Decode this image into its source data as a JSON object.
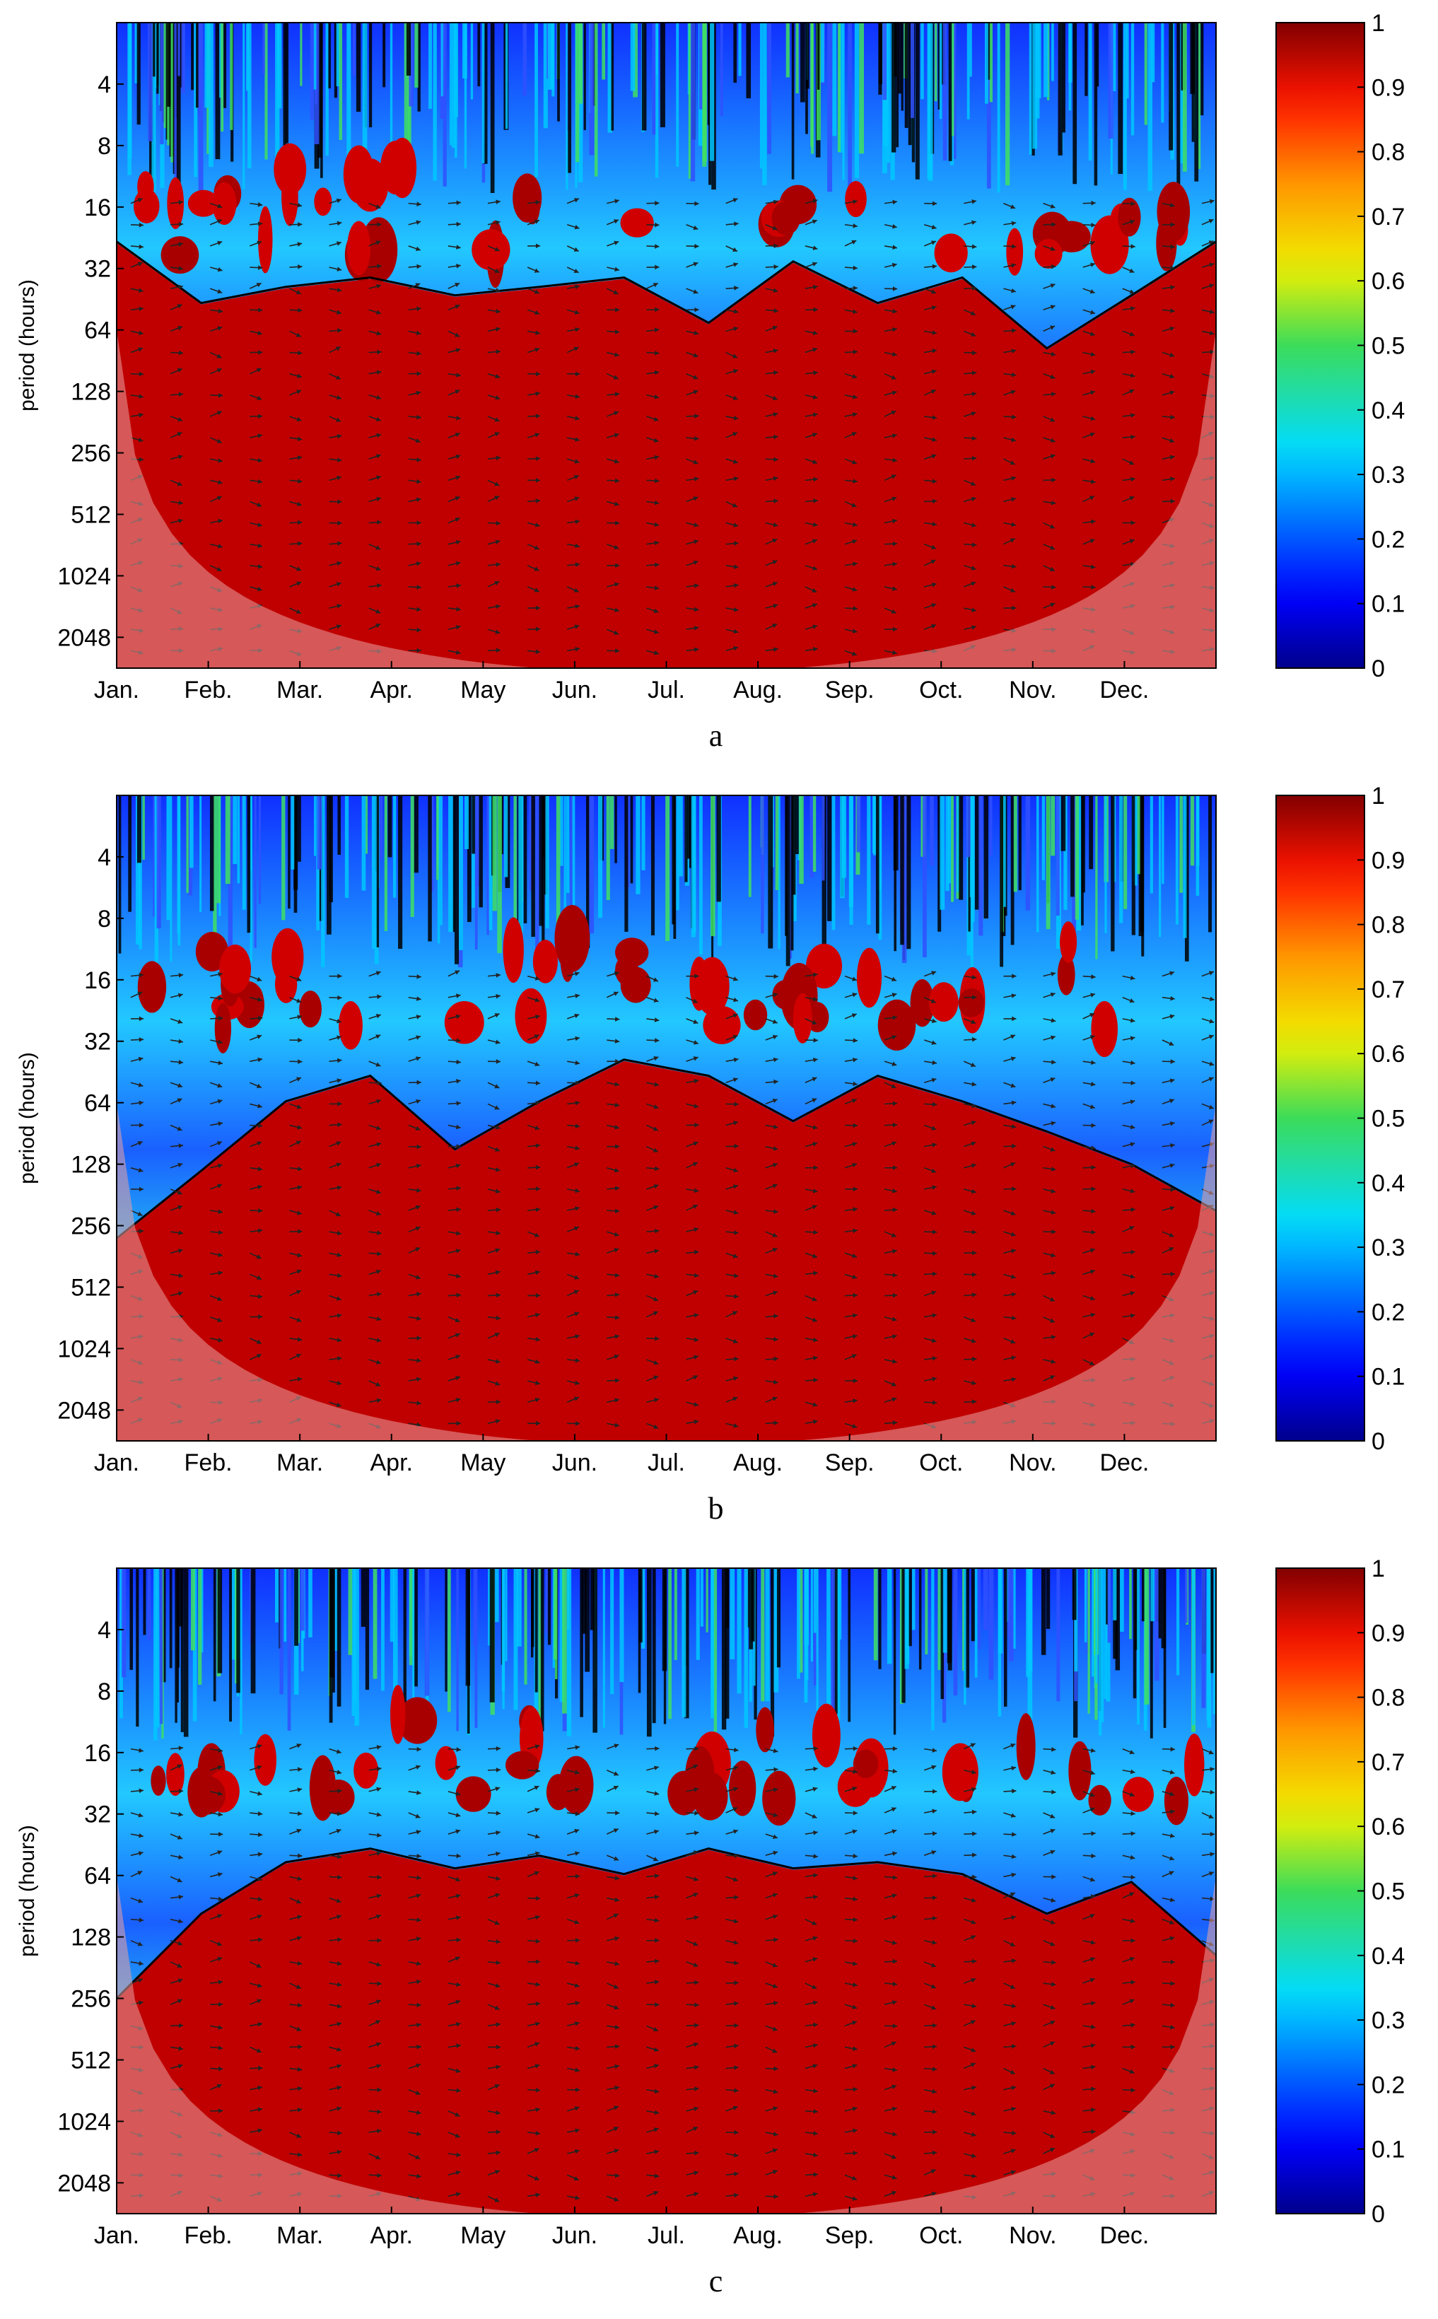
{
  "chart_data": [
    {
      "type": "heatmap",
      "panel_label": "a",
      "ylabel": "period (hours)",
      "x_ticks": [
        "Jan.",
        "Feb.",
        "Mar.",
        "Apr.",
        "May",
        "Jun.",
        "Jul.",
        "Aug.",
        "Sep.",
        "Oct.",
        "Nov.",
        "Dec."
      ],
      "y_ticks": [
        "4",
        "8",
        "16",
        "32",
        "64",
        "128",
        "256",
        "512",
        "1024",
        "2048"
      ],
      "y_scale": "log2",
      "colorbar_ticks": [
        "0",
        "0.1",
        "0.2",
        "0.3",
        "0.4",
        "0.5",
        "0.6",
        "0.7",
        "0.8",
        "0.9",
        "1"
      ],
      "colorbar_range": [
        0,
        1
      ],
      "colormap": "jet",
      "coherence_band_edge_hours": [
        24,
        48,
        40,
        36,
        44,
        40,
        36,
        60,
        30,
        48,
        36,
        80,
        44,
        24
      ],
      "high_coherence_band_hours": [
        64,
        2048
      ]
    },
    {
      "type": "heatmap",
      "panel_label": "b",
      "ylabel": "period (hours)",
      "x_ticks": [
        "Jan.",
        "Feb.",
        "Mar.",
        "Apr.",
        "May",
        "Jun.",
        "Jul.",
        "Aug.",
        "Sep.",
        "Oct.",
        "Nov.",
        "Dec."
      ],
      "y_ticks": [
        "4",
        "8",
        "16",
        "32",
        "64",
        "128",
        "256",
        "512",
        "1024",
        "2048"
      ],
      "y_scale": "log2",
      "colorbar_ticks": [
        "0",
        "0.1",
        "0.2",
        "0.3",
        "0.4",
        "0.5",
        "0.6",
        "0.7",
        "0.8",
        "0.9",
        "1"
      ],
      "colorbar_range": [
        0,
        1
      ],
      "colormap": "jet",
      "coherence_band_edge_hours": [
        300,
        140,
        64,
        48,
        110,
        64,
        40,
        48,
        80,
        48,
        64,
        90,
        130,
        220
      ],
      "high_coherence_band_hours": [
        128,
        2048
      ]
    },
    {
      "type": "heatmap",
      "panel_label": "c",
      "ylabel": "period (hours)",
      "x_ticks": [
        "Jan.",
        "Feb.",
        "Mar.",
        "Apr.",
        "May",
        "Jun.",
        "Jul.",
        "Aug.",
        "Sep.",
        "Oct.",
        "Nov.",
        "Dec."
      ],
      "y_ticks": [
        "4",
        "8",
        "16",
        "32",
        "64",
        "128",
        "256",
        "512",
        "1024",
        "2048"
      ],
      "y_scale": "log2",
      "colorbar_ticks": [
        "0",
        "0.1",
        "0.2",
        "0.3",
        "0.4",
        "0.5",
        "0.6",
        "0.7",
        "0.8",
        "0.9",
        "1"
      ],
      "colorbar_range": [
        0,
        1
      ],
      "colormap": "jet",
      "coherence_band_edge_hours": [
        260,
        100,
        56,
        48,
        60,
        52,
        64,
        48,
        60,
        56,
        64,
        100,
        70,
        160
      ],
      "high_coherence_band_hours": [
        64,
        2048
      ]
    }
  ],
  "colors": {
    "coi_shade": "#e8a0a0",
    "high_coherence": "#b40000",
    "text": "#000000"
  }
}
